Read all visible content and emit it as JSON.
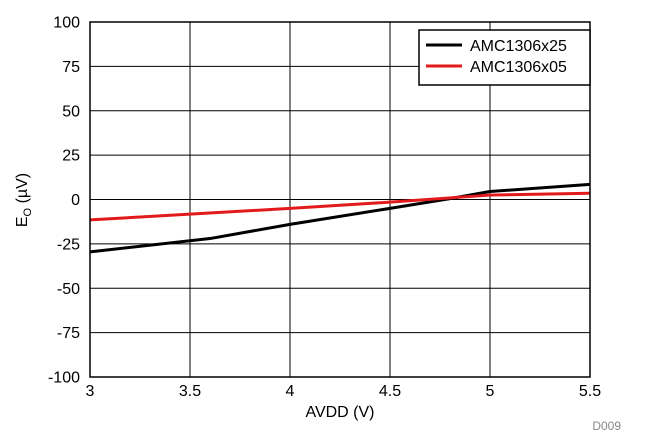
{
  "chart_data": {
    "type": "line",
    "title": "",
    "xlabel": "AVDD (V)",
    "ylabel_main": "E",
    "ylabel_sub": "O",
    "ylabel_unit": " (µV)",
    "xlim": [
      3,
      5.5
    ],
    "ylim": [
      -100,
      100
    ],
    "x_ticks": [
      3,
      3.5,
      4,
      4.5,
      5,
      5.5
    ],
    "x_tick_labels": [
      "3",
      "3.5",
      "4",
      "4.5",
      "5",
      "5.5"
    ],
    "y_ticks": [
      100,
      75,
      50,
      25,
      0,
      -25,
      -50,
      -75,
      -100
    ],
    "y_tick_labels": [
      "100",
      "75",
      "50",
      "25",
      "0",
      "-25",
      "-50",
      "-75",
      "-100"
    ],
    "grid": true,
    "legend_position": "top-right",
    "figure_id": "D009",
    "series": [
      {
        "name": "AMC1306x25",
        "color": "#000000",
        "x": [
          3,
          3.6,
          4,
          4.5,
          4.8,
          5,
          5.5
        ],
        "y": [
          -29.5,
          -22,
          -14,
          -5,
          0.5,
          4.5,
          8.5
        ]
      },
      {
        "name": "AMC1306x05",
        "color": "#e31a1c",
        "x": [
          3,
          4,
          4.5,
          5,
          5.5
        ],
        "y": [
          -11.5,
          -5,
          -1.5,
          2.5,
          3.5
        ]
      }
    ]
  }
}
